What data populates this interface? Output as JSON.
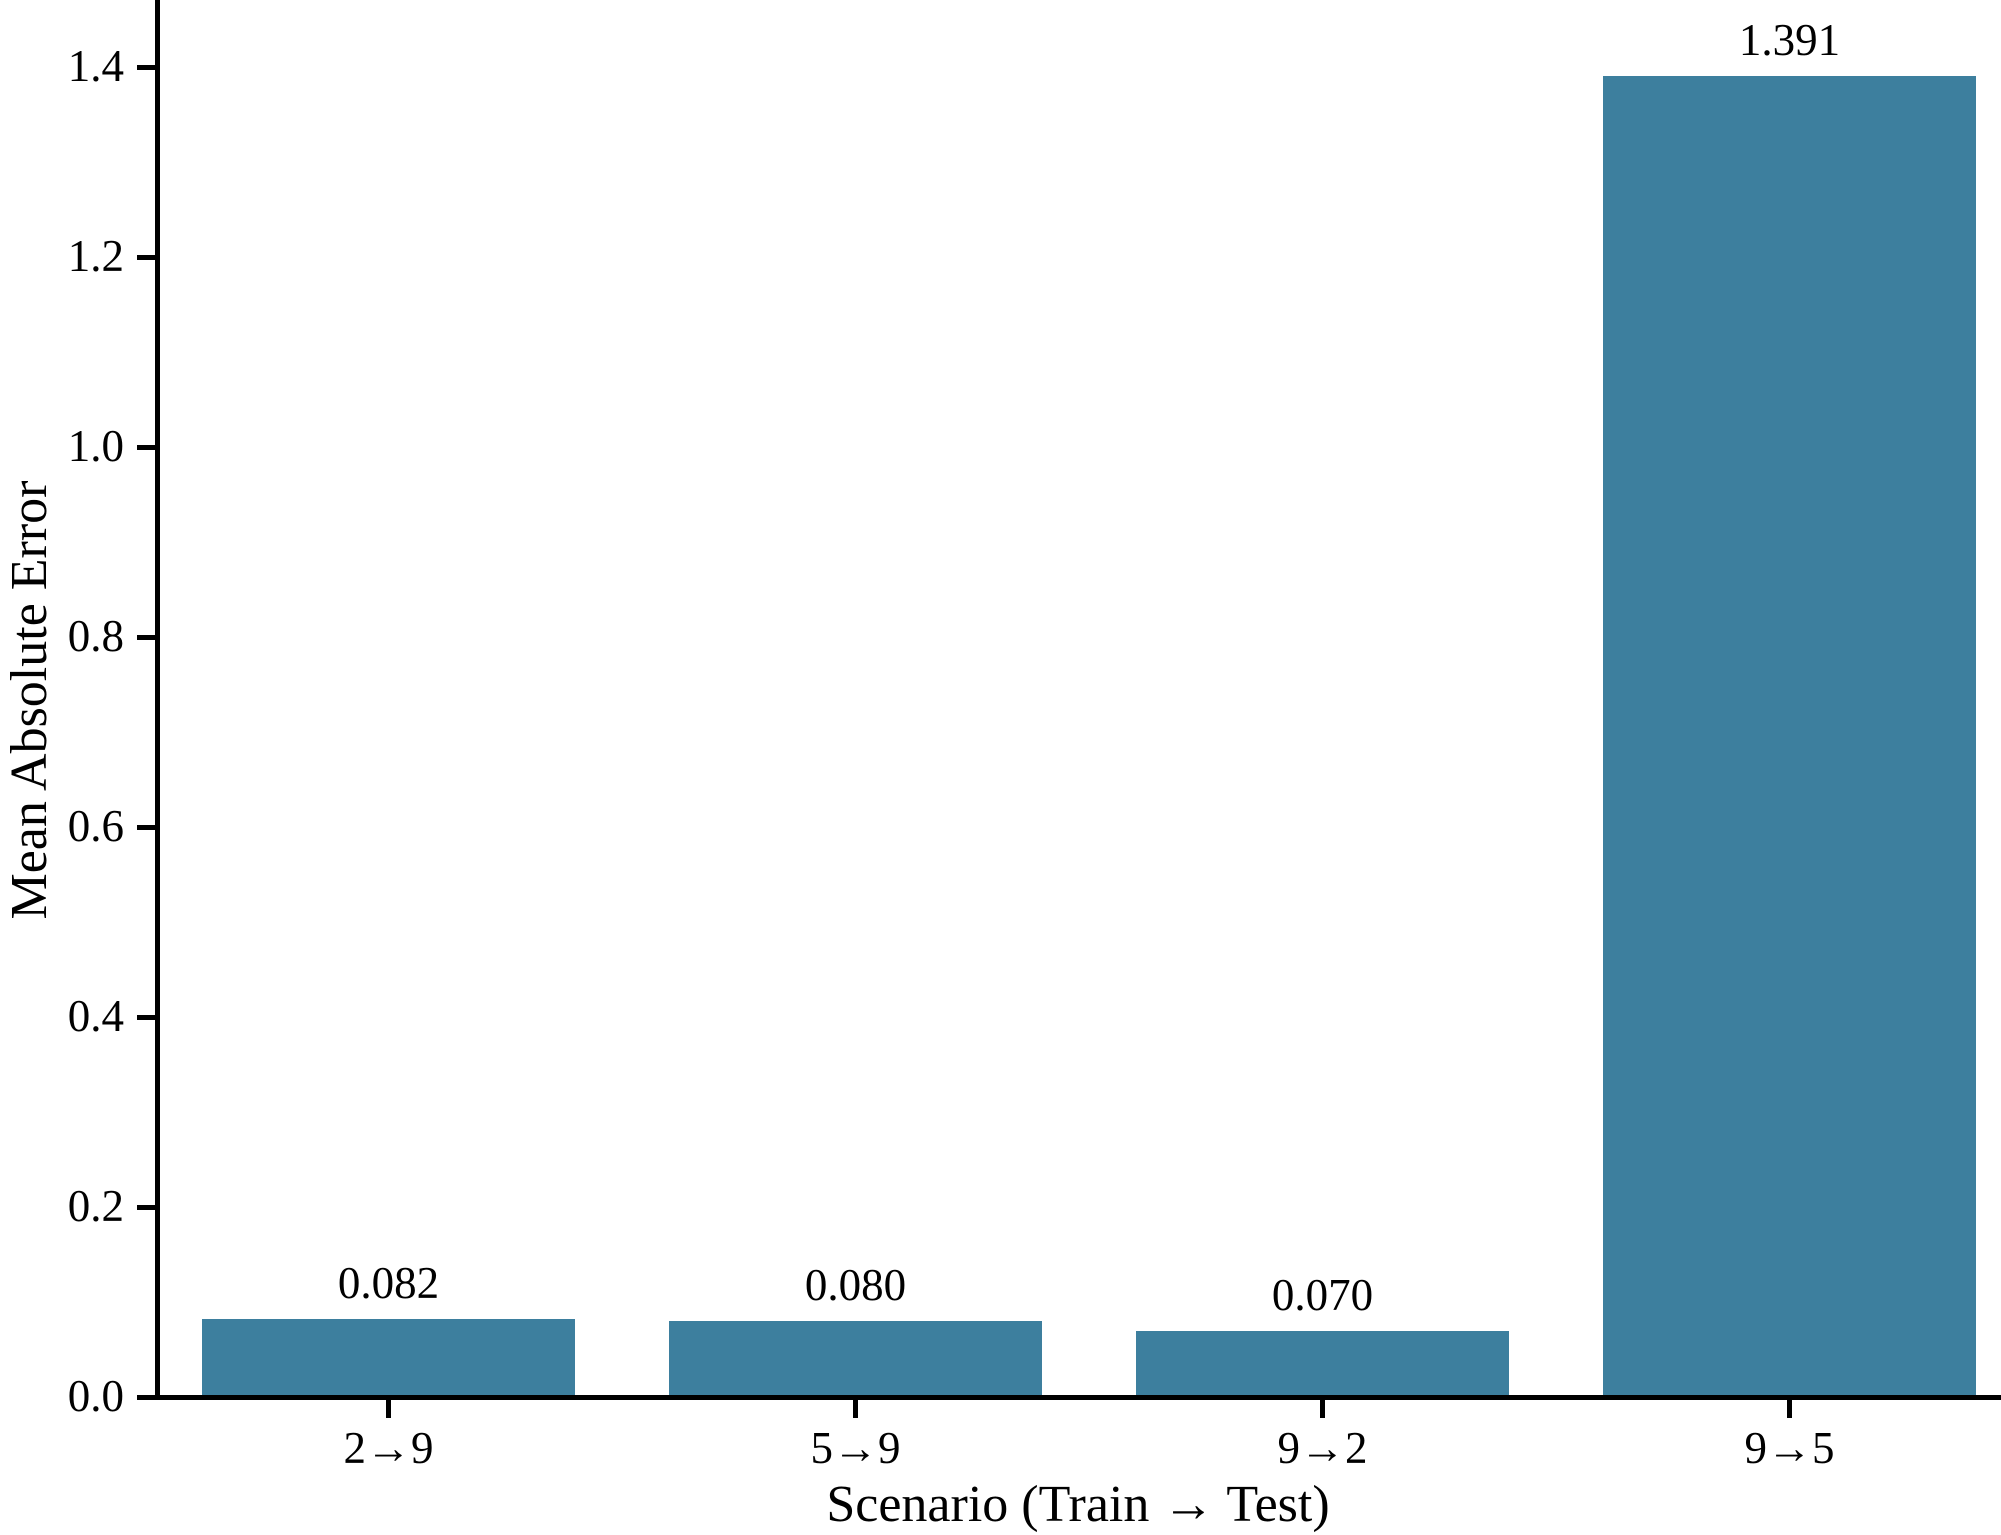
{
  "chart_data": {
    "type": "bar",
    "title": "",
    "xlabel": "Scenario (Train → Test)",
    "ylabel": "Mean Absolute Error",
    "categories": [
      "2→9",
      "5→9",
      "9→2",
      "9→5"
    ],
    "values": [
      0.082,
      0.08,
      0.07,
      1.391
    ],
    "value_labels": [
      "0.082",
      "0.080",
      "0.070",
      "1.391"
    ],
    "yticks": [
      0.0,
      0.2,
      0.4,
      0.6,
      0.8,
      1.0,
      1.2,
      1.4
    ],
    "ytick_labels": [
      "0.0",
      "0.2",
      "0.4",
      "0.6",
      "0.8",
      "1.0",
      "1.2",
      "1.4"
    ],
    "ylim": [
      0,
      1.47
    ],
    "grid": false,
    "legend_position": "none",
    "bar_color": "#3d7f9e",
    "axis_color": "#000000",
    "background_color": "#ffffff",
    "text_color": "#000000"
  }
}
